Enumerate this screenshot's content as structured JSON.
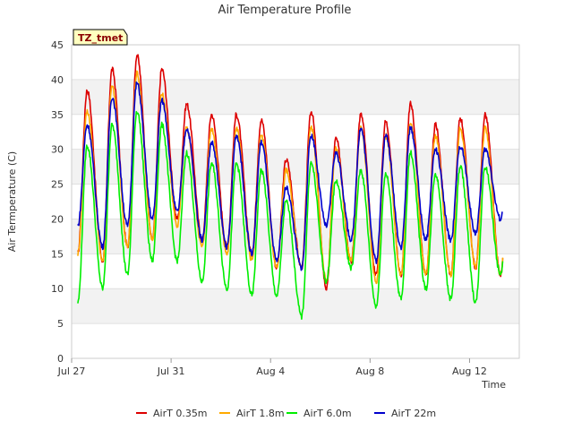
{
  "chart_data": {
    "type": "line",
    "title": "Air Temperature Profile",
    "xlabel": "Time",
    "ylabel": "Air Termperature (C)",
    "badge": "TZ_tmet",
    "x_ticks": [
      "Jul 27",
      "Jul 31",
      "Aug 4",
      "Aug 8",
      "Aug 12"
    ],
    "y_ticks": [
      "0",
      "5",
      "10",
      "15",
      "20",
      "25",
      "30",
      "35",
      "40",
      "45"
    ],
    "xlim": [
      "2023-07-27T00:00",
      "2023-08-14T00:00"
    ],
    "ylim": [
      0,
      45
    ],
    "grid": true,
    "legend_position": "bottom",
    "daily_extremes": {
      "dates": [
        "Jul 27",
        "Jul 28",
        "Jul 29",
        "Jul 30",
        "Jul 31",
        "Aug 1",
        "Aug 2",
        "Aug 3",
        "Aug 4",
        "Aug 5",
        "Aug 6",
        "Aug 7",
        "Aug 8",
        "Aug 9",
        "Aug 10",
        "Aug 11",
        "Aug 12",
        "Aug 13"
      ],
      "series": [
        {
          "name": "AirT 0.35m",
          "color": "#dd0000",
          "min": [
            15,
            14,
            16,
            17,
            20,
            17,
            16,
            15,
            13,
            13,
            10,
            14,
            12,
            12,
            12,
            12,
            13,
            12
          ],
          "max": [
            38.5,
            41.5,
            43.5,
            41.5,
            36.5,
            35,
            35,
            34.2,
            28.5,
            35.5,
            31.5,
            35,
            34,
            36.5,
            33.5,
            34.5,
            35,
            35
          ]
        },
        {
          "name": "AirT 1.8m",
          "color": "#ffaa00",
          "min": [
            15,
            14,
            16,
            17,
            19,
            16,
            15,
            14,
            13,
            13,
            11,
            14,
            11,
            12,
            12,
            12,
            13,
            12
          ],
          "max": [
            35.5,
            39,
            41,
            38,
            33,
            33,
            33,
            32,
            27,
            33,
            30,
            33,
            32,
            34,
            32,
            33,
            33,
            33
          ]
        },
        {
          "name": "AirT 6.0m",
          "color": "#00ee00",
          "min": [
            8,
            10,
            12,
            14,
            14,
            11,
            10,
            9,
            9,
            6,
            11,
            13,
            7.5,
            8.5,
            10,
            8.5,
            8,
            12
          ],
          "max": [
            30.5,
            33.5,
            35.5,
            33.5,
            29.5,
            28,
            28,
            27,
            22.5,
            28,
            25.5,
            27,
            26.5,
            29.5,
            26.5,
            27.5,
            27.5,
            26
          ]
        },
        {
          "name": "AirT 22m",
          "color": "#0000cc",
          "min": [
            19,
            16,
            19,
            20,
            21,
            17,
            16,
            15,
            14,
            13,
            19,
            17,
            14,
            16,
            17,
            17,
            18,
            20
          ],
          "max": [
            33.5,
            37.5,
            39.5,
            37,
            33,
            31,
            32,
            31,
            24.5,
            32,
            29.5,
            33,
            32,
            33,
            30,
            30.5,
            30,
            30
          ]
        }
      ]
    }
  }
}
